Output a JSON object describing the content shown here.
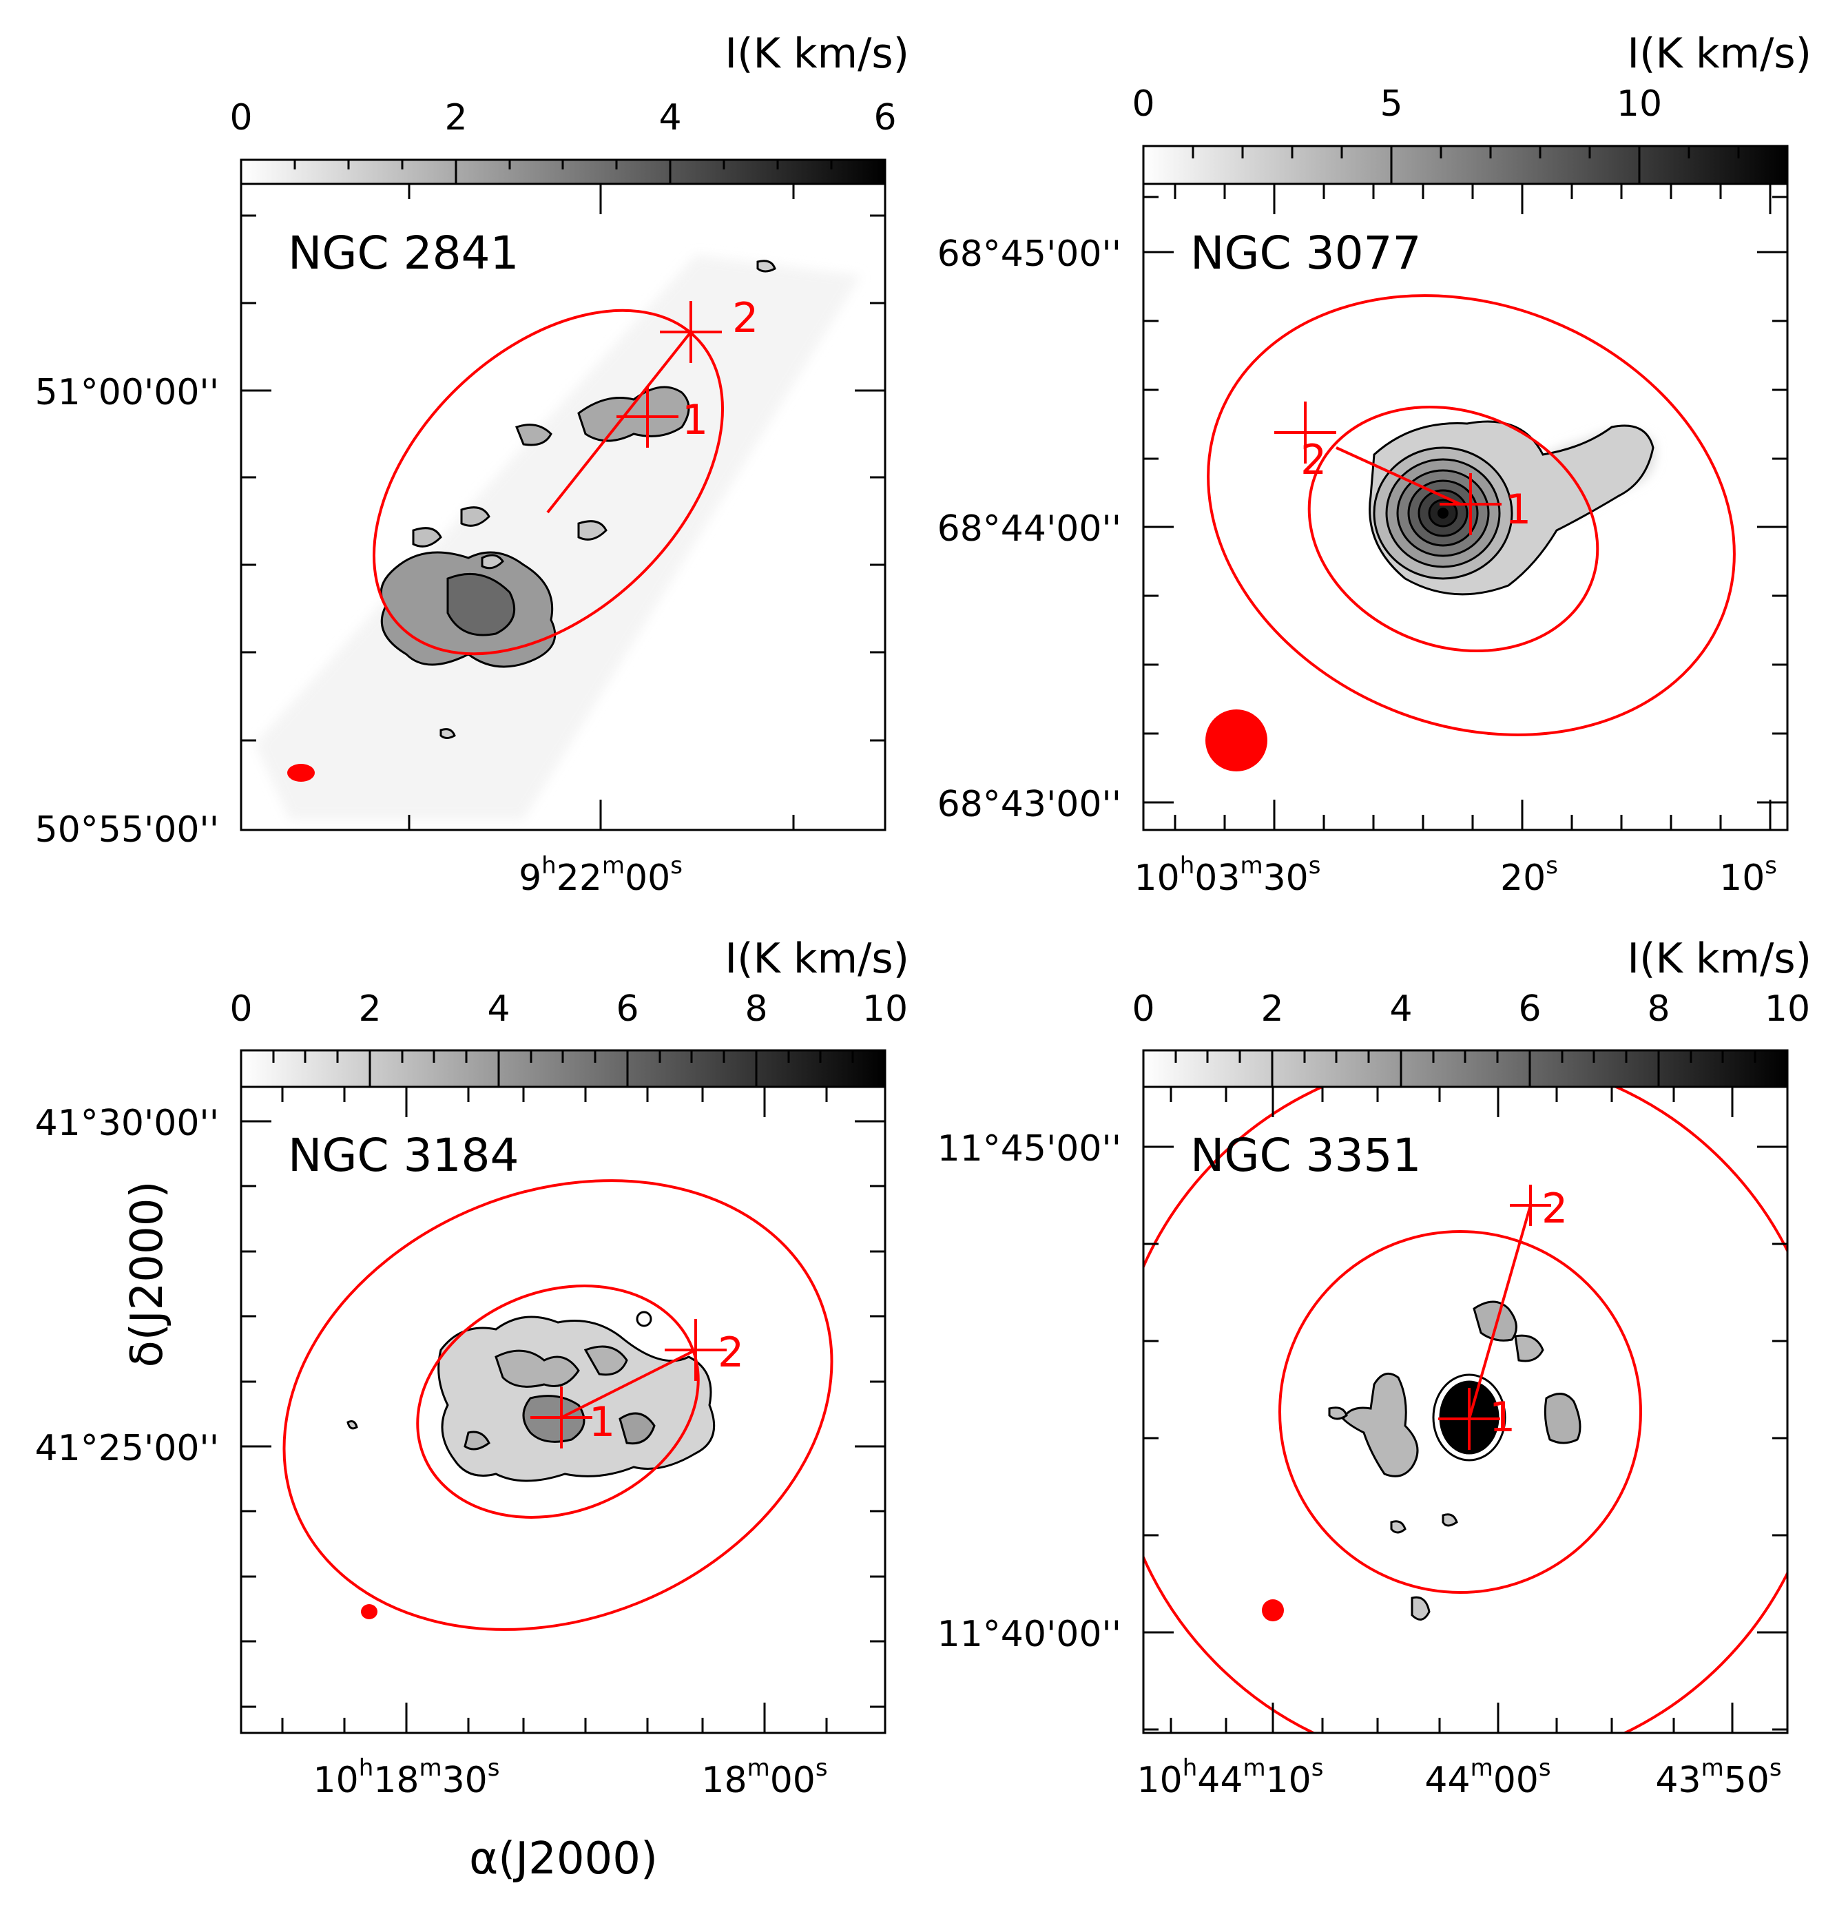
{
  "figure": {
    "axis_label_x": "α(J2000)",
    "axis_label_y": "δ(J2000)",
    "colors": {
      "overlay": "#ff0000",
      "contour": "#000000",
      "frame": "#000000"
    }
  },
  "chart_data": [
    {
      "type": "heatmap",
      "title": "NGC 2841",
      "colorbar": {
        "label": "I(K km/s)",
        "range": [
          0,
          6
        ],
        "ticks": [
          "0",
          "2",
          "4",
          "6"
        ]
      },
      "ra_ticks": [
        {
          "h": "9",
          "m": "22",
          "s": "00"
        }
      ],
      "dec_ticks": [
        "51°00'00''",
        "50°55'00''"
      ],
      "markers": [
        {
          "label": "1"
        },
        {
          "label": "2"
        }
      ]
    },
    {
      "type": "heatmap",
      "title": "NGC 3077",
      "colorbar": {
        "label": "I(K km/s)",
        "range": [
          0,
          13
        ],
        "ticks": [
          "0",
          "5",
          "10"
        ]
      },
      "ra_ticks": [
        {
          "h": "10",
          "m": "03",
          "s": "30"
        },
        {
          "s": "20"
        },
        {
          "s": "10"
        }
      ],
      "dec_ticks": [
        "68°45'00''",
        "68°44'00''",
        "68°43'00''"
      ],
      "markers": [
        {
          "label": "1"
        },
        {
          "label": "2"
        }
      ]
    },
    {
      "type": "heatmap",
      "title": "NGC 3184",
      "colorbar": {
        "label": "I(K km/s)",
        "range": [
          0,
          10
        ],
        "ticks": [
          "0",
          "2",
          "4",
          "6",
          "8",
          "10"
        ]
      },
      "ra_ticks": [
        {
          "h": "10",
          "m": "18",
          "s": "30"
        },
        {
          "m": "18",
          "s": "00"
        }
      ],
      "dec_ticks": [
        "41°30'00''",
        "41°25'00''"
      ],
      "markers": [
        {
          "label": "1"
        },
        {
          "label": "2"
        }
      ]
    },
    {
      "type": "heatmap",
      "title": "NGC 3351",
      "colorbar": {
        "label": "I(K km/s)",
        "range": [
          0,
          10
        ],
        "ticks": [
          "0",
          "2",
          "4",
          "6",
          "8",
          "10"
        ]
      },
      "ra_ticks": [
        {
          "h": "10",
          "m": "44",
          "s": "10"
        },
        {
          "m": "44",
          "s": "00"
        },
        {
          "m": "43",
          "s": "50"
        }
      ],
      "dec_ticks": [
        "11°45'00''",
        "11°40'00''"
      ],
      "markers": [
        {
          "label": "1"
        },
        {
          "label": "2"
        }
      ]
    }
  ]
}
